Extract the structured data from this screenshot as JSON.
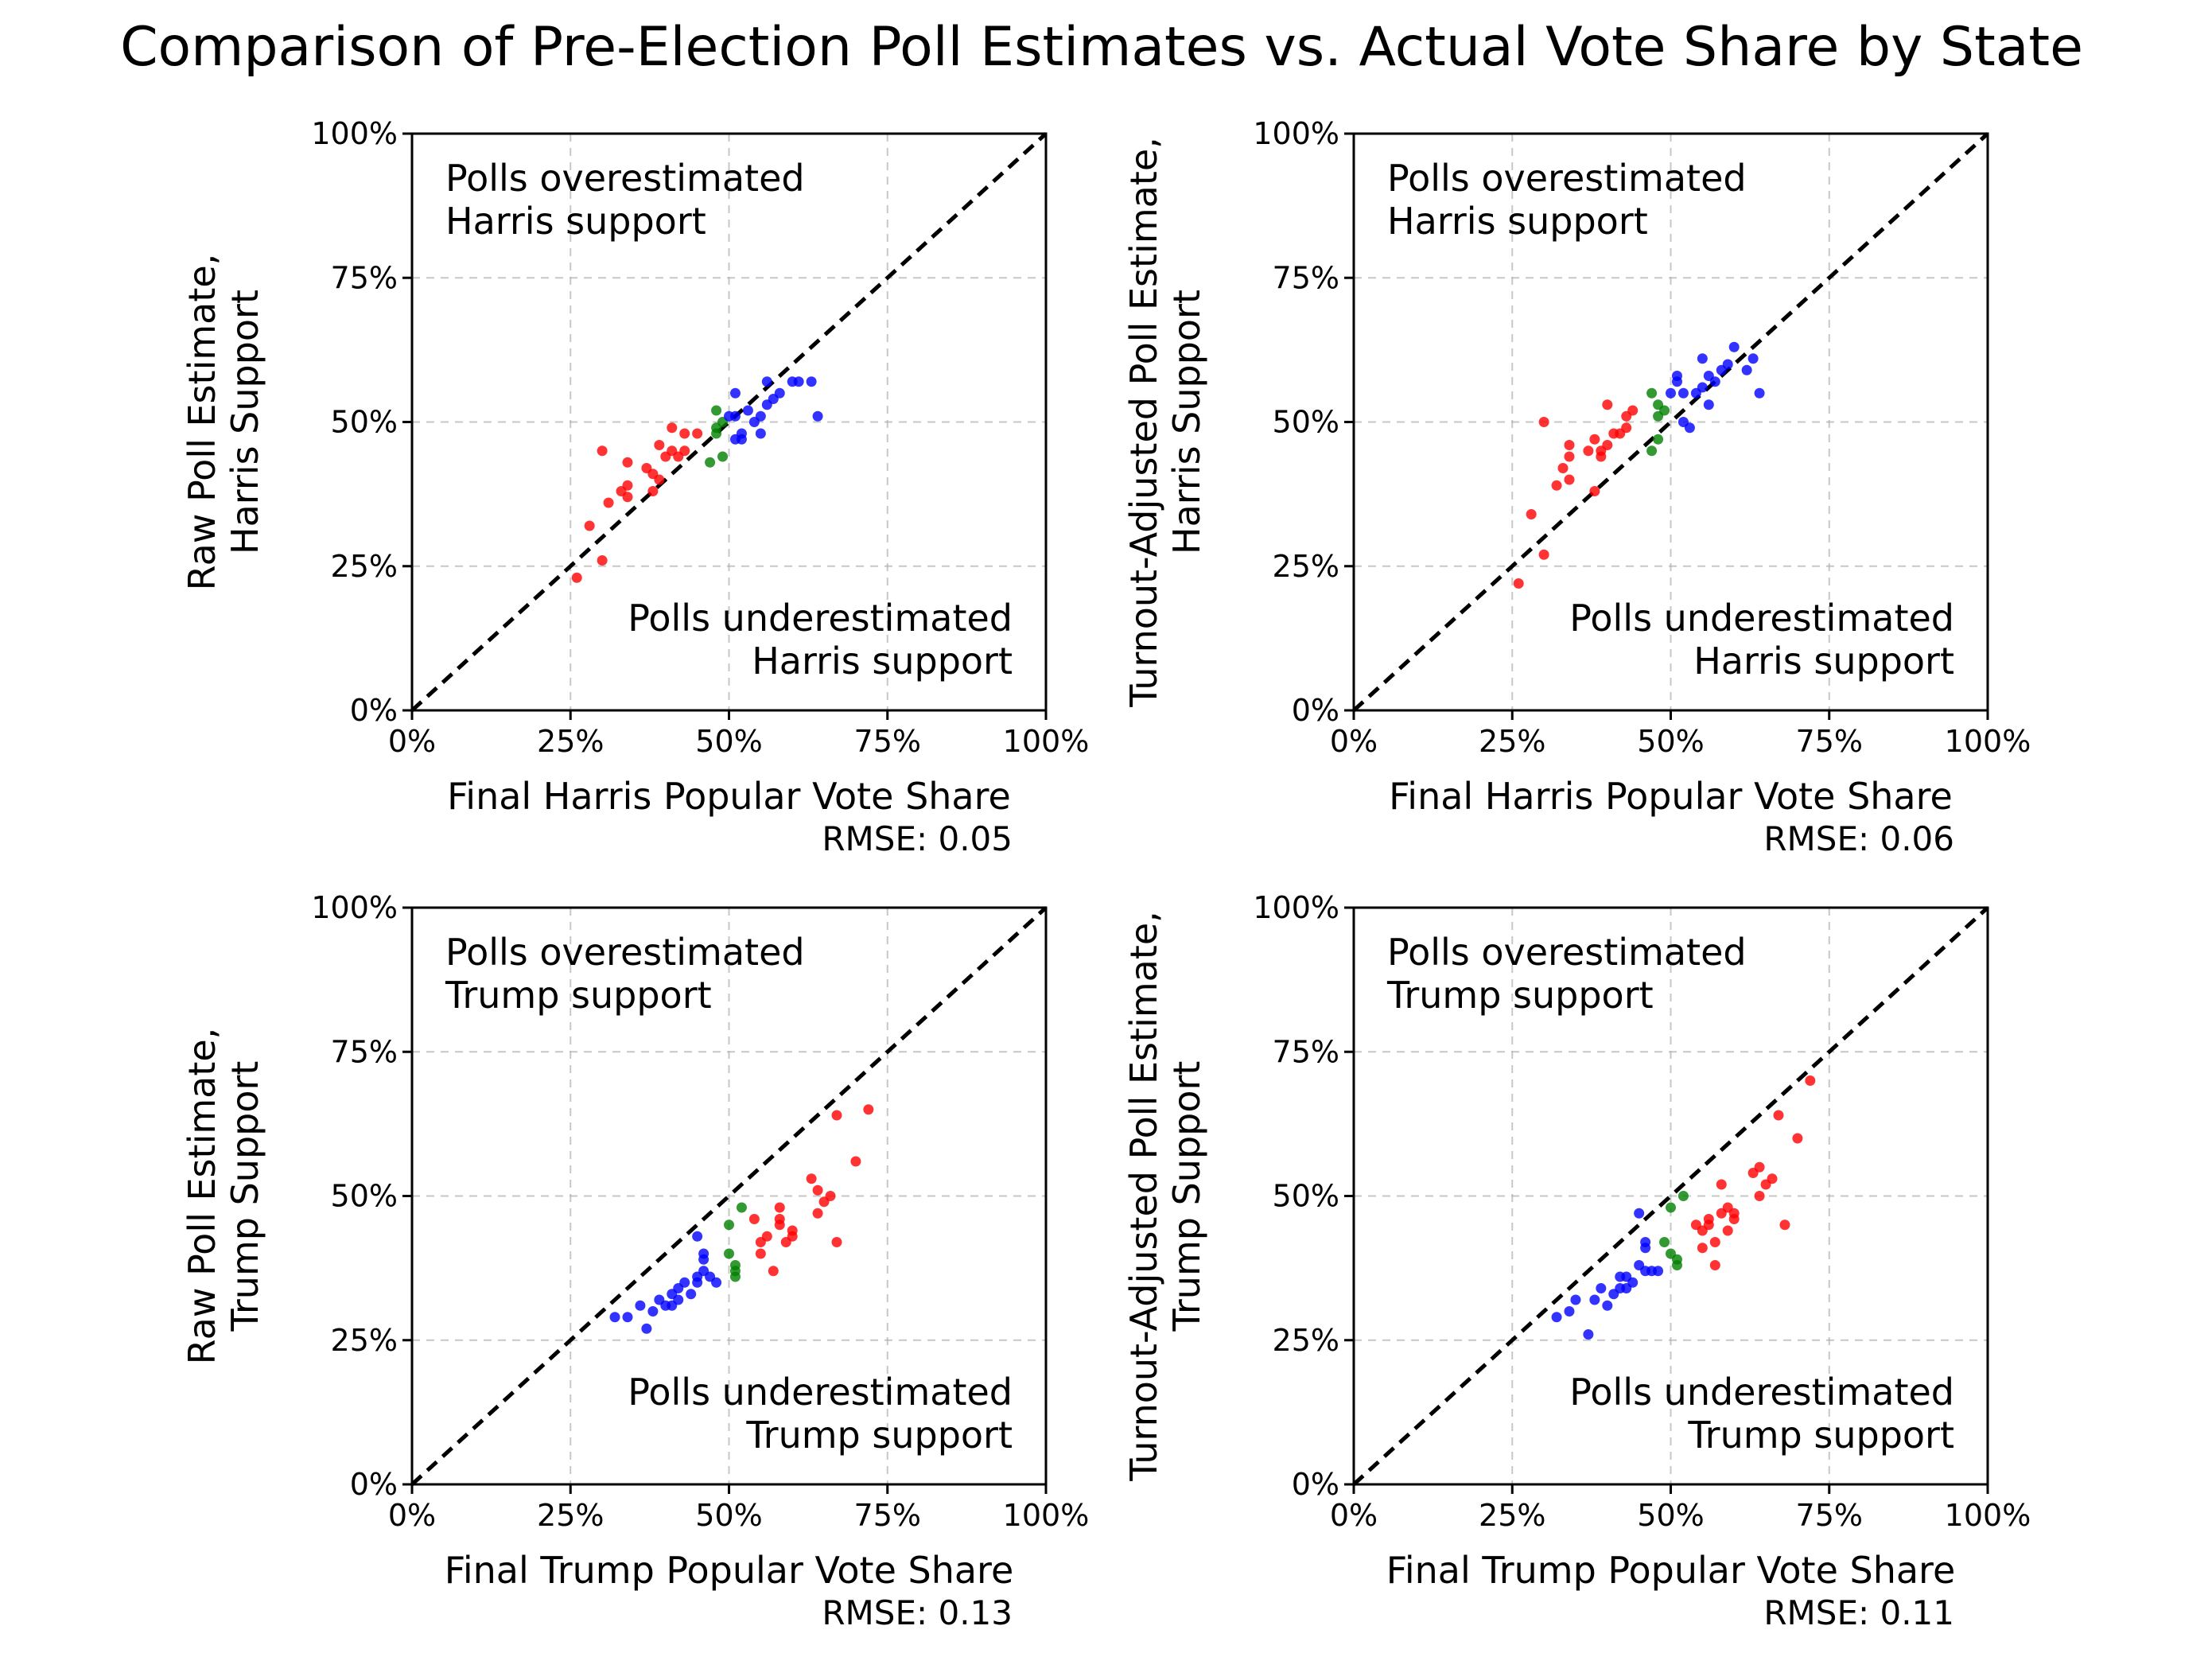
{
  "figure": {
    "title": "Comparison of Pre-Election Poll Estimates vs. Actual Vote Share by State"
  },
  "colors": {
    "democratic": "#0000ff",
    "republican": "#ff0000",
    "swing": "#008000"
  },
  "chart_data": [
    {
      "type": "scatter",
      "xlabel": "Final Harris Popular Vote Share",
      "ylabel_lines": [
        "Raw Poll Estimate,",
        "Harris Support"
      ],
      "xlim": [
        0,
        1
      ],
      "ylim": [
        0,
        1
      ],
      "ticks": [
        "0%",
        "25%",
        "50%",
        "75%",
        "100%"
      ],
      "tick_values": [
        0,
        0.25,
        0.5,
        0.75,
        1
      ],
      "grid": true,
      "reference_line": "y = x",
      "annotation_top": [
        "Polls overestimated",
        "Harris support"
      ],
      "annotation_bottom": [
        "Polls underestimated",
        "Harris support"
      ],
      "rmse_text": "RMSE: 0.05",
      "points": [
        {
          "x": 0.26,
          "y": 0.23,
          "g": "republican"
        },
        {
          "x": 0.28,
          "y": 0.32,
          "g": "republican"
        },
        {
          "x": 0.3,
          "y": 0.26,
          "g": "republican"
        },
        {
          "x": 0.31,
          "y": 0.36,
          "g": "republican"
        },
        {
          "x": 0.33,
          "y": 0.38,
          "g": "republican"
        },
        {
          "x": 0.34,
          "y": 0.37,
          "g": "republican"
        },
        {
          "x": 0.34,
          "y": 0.39,
          "g": "republican"
        },
        {
          "x": 0.3,
          "y": 0.45,
          "g": "republican"
        },
        {
          "x": 0.34,
          "y": 0.43,
          "g": "republican"
        },
        {
          "x": 0.37,
          "y": 0.42,
          "g": "republican"
        },
        {
          "x": 0.38,
          "y": 0.41,
          "g": "republican"
        },
        {
          "x": 0.38,
          "y": 0.38,
          "g": "republican"
        },
        {
          "x": 0.39,
          "y": 0.46,
          "g": "republican"
        },
        {
          "x": 0.4,
          "y": 0.44,
          "g": "republican"
        },
        {
          "x": 0.41,
          "y": 0.45,
          "g": "republican"
        },
        {
          "x": 0.41,
          "y": 0.49,
          "g": "republican"
        },
        {
          "x": 0.42,
          "y": 0.44,
          "g": "republican"
        },
        {
          "x": 0.43,
          "y": 0.45,
          "g": "republican"
        },
        {
          "x": 0.43,
          "y": 0.48,
          "g": "republican"
        },
        {
          "x": 0.45,
          "y": 0.48,
          "g": "republican"
        },
        {
          "x": 0.39,
          "y": 0.4,
          "g": "republican"
        },
        {
          "x": 0.47,
          "y": 0.43,
          "g": "swing"
        },
        {
          "x": 0.48,
          "y": 0.49,
          "g": "swing"
        },
        {
          "x": 0.48,
          "y": 0.52,
          "g": "swing"
        },
        {
          "x": 0.49,
          "y": 0.44,
          "g": "swing"
        },
        {
          "x": 0.49,
          "y": 0.5,
          "g": "swing"
        },
        {
          "x": 0.48,
          "y": 0.48,
          "g": "swing"
        },
        {
          "x": 0.51,
          "y": 0.47,
          "g": "democratic"
        },
        {
          "x": 0.51,
          "y": 0.51,
          "g": "democratic"
        },
        {
          "x": 0.52,
          "y": 0.48,
          "g": "democratic"
        },
        {
          "x": 0.51,
          "y": 0.55,
          "g": "democratic"
        },
        {
          "x": 0.53,
          "y": 0.52,
          "g": "democratic"
        },
        {
          "x": 0.54,
          "y": 0.5,
          "g": "democratic"
        },
        {
          "x": 0.55,
          "y": 0.51,
          "g": "democratic"
        },
        {
          "x": 0.55,
          "y": 0.48,
          "g": "democratic"
        },
        {
          "x": 0.56,
          "y": 0.53,
          "g": "democratic"
        },
        {
          "x": 0.56,
          "y": 0.57,
          "g": "democratic"
        },
        {
          "x": 0.57,
          "y": 0.54,
          "g": "democratic"
        },
        {
          "x": 0.58,
          "y": 0.55,
          "g": "democratic"
        },
        {
          "x": 0.6,
          "y": 0.57,
          "g": "democratic"
        },
        {
          "x": 0.61,
          "y": 0.57,
          "g": "democratic"
        },
        {
          "x": 0.63,
          "y": 0.57,
          "g": "democratic"
        },
        {
          "x": 0.64,
          "y": 0.51,
          "g": "democratic"
        },
        {
          "x": 0.52,
          "y": 0.47,
          "g": "democratic"
        },
        {
          "x": 0.5,
          "y": 0.51,
          "g": "democratic"
        }
      ]
    },
    {
      "type": "scatter",
      "xlabel": "Final Harris Popular Vote Share",
      "ylabel_lines": [
        "Turnout-Adjusted Poll Estimate,",
        "Harris Support"
      ],
      "xlim": [
        0,
        1
      ],
      "ylim": [
        0,
        1
      ],
      "ticks": [
        "0%",
        "25%",
        "50%",
        "75%",
        "100%"
      ],
      "tick_values": [
        0,
        0.25,
        0.5,
        0.75,
        1
      ],
      "grid": true,
      "reference_line": "y = x",
      "annotation_top": [
        "Polls overestimated",
        "Harris support"
      ],
      "annotation_bottom": [
        "Polls underestimated",
        "Harris support"
      ],
      "rmse_text": "RMSE: 0.06",
      "points": [
        {
          "x": 0.26,
          "y": 0.22,
          "g": "republican"
        },
        {
          "x": 0.28,
          "y": 0.34,
          "g": "republican"
        },
        {
          "x": 0.3,
          "y": 0.27,
          "g": "republican"
        },
        {
          "x": 0.3,
          "y": 0.5,
          "g": "republican"
        },
        {
          "x": 0.32,
          "y": 0.39,
          "g": "republican"
        },
        {
          "x": 0.33,
          "y": 0.42,
          "g": "republican"
        },
        {
          "x": 0.34,
          "y": 0.4,
          "g": "republican"
        },
        {
          "x": 0.34,
          "y": 0.44,
          "g": "republican"
        },
        {
          "x": 0.34,
          "y": 0.46,
          "g": "republican"
        },
        {
          "x": 0.37,
          "y": 0.45,
          "g": "republican"
        },
        {
          "x": 0.38,
          "y": 0.47,
          "g": "republican"
        },
        {
          "x": 0.38,
          "y": 0.38,
          "g": "republican"
        },
        {
          "x": 0.39,
          "y": 0.44,
          "g": "republican"
        },
        {
          "x": 0.4,
          "y": 0.46,
          "g": "republican"
        },
        {
          "x": 0.41,
          "y": 0.48,
          "g": "republican"
        },
        {
          "x": 0.4,
          "y": 0.53,
          "g": "republican"
        },
        {
          "x": 0.42,
          "y": 0.48,
          "g": "republican"
        },
        {
          "x": 0.43,
          "y": 0.51,
          "g": "republican"
        },
        {
          "x": 0.43,
          "y": 0.49,
          "g": "republican"
        },
        {
          "x": 0.44,
          "y": 0.52,
          "g": "republican"
        },
        {
          "x": 0.39,
          "y": 0.45,
          "g": "republican"
        },
        {
          "x": 0.47,
          "y": 0.45,
          "g": "swing"
        },
        {
          "x": 0.47,
          "y": 0.55,
          "g": "swing"
        },
        {
          "x": 0.48,
          "y": 0.51,
          "g": "swing"
        },
        {
          "x": 0.48,
          "y": 0.47,
          "g": "swing"
        },
        {
          "x": 0.49,
          "y": 0.52,
          "g": "swing"
        },
        {
          "x": 0.48,
          "y": 0.53,
          "g": "swing"
        },
        {
          "x": 0.5,
          "y": 0.55,
          "g": "democratic"
        },
        {
          "x": 0.51,
          "y": 0.58,
          "g": "democratic"
        },
        {
          "x": 0.52,
          "y": 0.5,
          "g": "democratic"
        },
        {
          "x": 0.52,
          "y": 0.55,
          "g": "democratic"
        },
        {
          "x": 0.53,
          "y": 0.49,
          "g": "democratic"
        },
        {
          "x": 0.54,
          "y": 0.55,
          "g": "democratic"
        },
        {
          "x": 0.55,
          "y": 0.56,
          "g": "democratic"
        },
        {
          "x": 0.56,
          "y": 0.53,
          "g": "democratic"
        },
        {
          "x": 0.56,
          "y": 0.58,
          "g": "democratic"
        },
        {
          "x": 0.55,
          "y": 0.61,
          "g": "democratic"
        },
        {
          "x": 0.57,
          "y": 0.57,
          "g": "democratic"
        },
        {
          "x": 0.58,
          "y": 0.59,
          "g": "democratic"
        },
        {
          "x": 0.59,
          "y": 0.6,
          "g": "democratic"
        },
        {
          "x": 0.6,
          "y": 0.63,
          "g": "democratic"
        },
        {
          "x": 0.62,
          "y": 0.59,
          "g": "democratic"
        },
        {
          "x": 0.63,
          "y": 0.61,
          "g": "democratic"
        },
        {
          "x": 0.64,
          "y": 0.55,
          "g": "democratic"
        },
        {
          "x": 0.51,
          "y": 0.57,
          "g": "democratic"
        }
      ]
    },
    {
      "type": "scatter",
      "xlabel": "Final Trump Popular Vote Share",
      "ylabel_lines": [
        "Raw Poll Estimate,",
        "Trump Support"
      ],
      "xlim": [
        0,
        1
      ],
      "ylim": [
        0,
        1
      ],
      "ticks": [
        "0%",
        "25%",
        "50%",
        "75%",
        "100%"
      ],
      "tick_values": [
        0,
        0.25,
        0.5,
        0.75,
        1
      ],
      "grid": true,
      "reference_line": "y = x",
      "annotation_top": [
        "Polls overestimated",
        "Trump support"
      ],
      "annotation_bottom": [
        "Polls underestimated",
        "Trump support"
      ],
      "rmse_text": "RMSE: 0.13",
      "points": [
        {
          "x": 0.32,
          "y": 0.29,
          "g": "democratic"
        },
        {
          "x": 0.34,
          "y": 0.29,
          "g": "democratic"
        },
        {
          "x": 0.36,
          "y": 0.31,
          "g": "democratic"
        },
        {
          "x": 0.37,
          "y": 0.27,
          "g": "democratic"
        },
        {
          "x": 0.38,
          "y": 0.3,
          "g": "democratic"
        },
        {
          "x": 0.39,
          "y": 0.32,
          "g": "democratic"
        },
        {
          "x": 0.4,
          "y": 0.31,
          "g": "democratic"
        },
        {
          "x": 0.41,
          "y": 0.33,
          "g": "democratic"
        },
        {
          "x": 0.41,
          "y": 0.31,
          "g": "democratic"
        },
        {
          "x": 0.42,
          "y": 0.32,
          "g": "democratic"
        },
        {
          "x": 0.42,
          "y": 0.34,
          "g": "democratic"
        },
        {
          "x": 0.43,
          "y": 0.35,
          "g": "democratic"
        },
        {
          "x": 0.44,
          "y": 0.33,
          "g": "democratic"
        },
        {
          "x": 0.45,
          "y": 0.35,
          "g": "democratic"
        },
        {
          "x": 0.45,
          "y": 0.43,
          "g": "democratic"
        },
        {
          "x": 0.46,
          "y": 0.39,
          "g": "democratic"
        },
        {
          "x": 0.46,
          "y": 0.4,
          "g": "democratic"
        },
        {
          "x": 0.46,
          "y": 0.37,
          "g": "democratic"
        },
        {
          "x": 0.47,
          "y": 0.36,
          "g": "democratic"
        },
        {
          "x": 0.48,
          "y": 0.35,
          "g": "democratic"
        },
        {
          "x": 0.45,
          "y": 0.36,
          "g": "democratic"
        },
        {
          "x": 0.5,
          "y": 0.4,
          "g": "swing"
        },
        {
          "x": 0.5,
          "y": 0.45,
          "g": "swing"
        },
        {
          "x": 0.51,
          "y": 0.38,
          "g": "swing"
        },
        {
          "x": 0.51,
          "y": 0.36,
          "g": "swing"
        },
        {
          "x": 0.52,
          "y": 0.48,
          "g": "swing"
        },
        {
          "x": 0.51,
          "y": 0.37,
          "g": "swing"
        },
        {
          "x": 0.54,
          "y": 0.46,
          "g": "republican"
        },
        {
          "x": 0.55,
          "y": 0.4,
          "g": "republican"
        },
        {
          "x": 0.55,
          "y": 0.42,
          "g": "republican"
        },
        {
          "x": 0.56,
          "y": 0.43,
          "g": "republican"
        },
        {
          "x": 0.57,
          "y": 0.37,
          "g": "republican"
        },
        {
          "x": 0.58,
          "y": 0.45,
          "g": "republican"
        },
        {
          "x": 0.58,
          "y": 0.48,
          "g": "republican"
        },
        {
          "x": 0.58,
          "y": 0.46,
          "g": "republican"
        },
        {
          "x": 0.59,
          "y": 0.42,
          "g": "republican"
        },
        {
          "x": 0.6,
          "y": 0.43,
          "g": "republican"
        },
        {
          "x": 0.6,
          "y": 0.44,
          "g": "republican"
        },
        {
          "x": 0.63,
          "y": 0.53,
          "g": "republican"
        },
        {
          "x": 0.64,
          "y": 0.47,
          "g": "republican"
        },
        {
          "x": 0.64,
          "y": 0.51,
          "g": "republican"
        },
        {
          "x": 0.65,
          "y": 0.49,
          "g": "republican"
        },
        {
          "x": 0.66,
          "y": 0.5,
          "g": "republican"
        },
        {
          "x": 0.67,
          "y": 0.64,
          "g": "republican"
        },
        {
          "x": 0.67,
          "y": 0.42,
          "g": "republican"
        },
        {
          "x": 0.7,
          "y": 0.56,
          "g": "republican"
        },
        {
          "x": 0.72,
          "y": 0.65,
          "g": "republican"
        }
      ]
    },
    {
      "type": "scatter",
      "xlabel": "Final Trump Popular Vote Share",
      "ylabel_lines": [
        "Turnout-Adjusted Poll Estimate,",
        "Trump Support"
      ],
      "xlim": [
        0,
        1
      ],
      "ylim": [
        0,
        1
      ],
      "ticks": [
        "0%",
        "25%",
        "50%",
        "75%",
        "100%"
      ],
      "tick_values": [
        0,
        0.25,
        0.5,
        0.75,
        1
      ],
      "grid": true,
      "reference_line": "y = x",
      "annotation_top": [
        "Polls overestimated",
        "Trump support"
      ],
      "annotation_bottom": [
        "Polls underestimated",
        "Trump support"
      ],
      "rmse_text": "RMSE: 0.11",
      "points": [
        {
          "x": 0.32,
          "y": 0.29,
          "g": "democratic"
        },
        {
          "x": 0.34,
          "y": 0.3,
          "g": "democratic"
        },
        {
          "x": 0.35,
          "y": 0.32,
          "g": "democratic"
        },
        {
          "x": 0.37,
          "y": 0.26,
          "g": "democratic"
        },
        {
          "x": 0.38,
          "y": 0.32,
          "g": "democratic"
        },
        {
          "x": 0.39,
          "y": 0.34,
          "g": "democratic"
        },
        {
          "x": 0.4,
          "y": 0.31,
          "g": "democratic"
        },
        {
          "x": 0.41,
          "y": 0.33,
          "g": "democratic"
        },
        {
          "x": 0.42,
          "y": 0.34,
          "g": "democratic"
        },
        {
          "x": 0.42,
          "y": 0.36,
          "g": "democratic"
        },
        {
          "x": 0.43,
          "y": 0.34,
          "g": "democratic"
        },
        {
          "x": 0.43,
          "y": 0.36,
          "g": "democratic"
        },
        {
          "x": 0.44,
          "y": 0.35,
          "g": "democratic"
        },
        {
          "x": 0.45,
          "y": 0.47,
          "g": "democratic"
        },
        {
          "x": 0.46,
          "y": 0.42,
          "g": "democratic"
        },
        {
          "x": 0.46,
          "y": 0.41,
          "g": "democratic"
        },
        {
          "x": 0.46,
          "y": 0.37,
          "g": "democratic"
        },
        {
          "x": 0.47,
          "y": 0.37,
          "g": "democratic"
        },
        {
          "x": 0.48,
          "y": 0.37,
          "g": "democratic"
        },
        {
          "x": 0.45,
          "y": 0.38,
          "g": "democratic"
        },
        {
          "x": 0.49,
          "y": 0.42,
          "g": "swing"
        },
        {
          "x": 0.5,
          "y": 0.48,
          "g": "swing"
        },
        {
          "x": 0.5,
          "y": 0.4,
          "g": "swing"
        },
        {
          "x": 0.51,
          "y": 0.38,
          "g": "swing"
        },
        {
          "x": 0.52,
          "y": 0.5,
          "g": "swing"
        },
        {
          "x": 0.51,
          "y": 0.39,
          "g": "swing"
        },
        {
          "x": 0.54,
          "y": 0.45,
          "g": "republican"
        },
        {
          "x": 0.55,
          "y": 0.44,
          "g": "republican"
        },
        {
          "x": 0.55,
          "y": 0.41,
          "g": "republican"
        },
        {
          "x": 0.56,
          "y": 0.46,
          "g": "republican"
        },
        {
          "x": 0.56,
          "y": 0.45,
          "g": "republican"
        },
        {
          "x": 0.57,
          "y": 0.38,
          "g": "republican"
        },
        {
          "x": 0.57,
          "y": 0.42,
          "g": "republican"
        },
        {
          "x": 0.58,
          "y": 0.47,
          "g": "republican"
        },
        {
          "x": 0.58,
          "y": 0.52,
          "g": "republican"
        },
        {
          "x": 0.59,
          "y": 0.44,
          "g": "republican"
        },
        {
          "x": 0.59,
          "y": 0.48,
          "g": "republican"
        },
        {
          "x": 0.6,
          "y": 0.47,
          "g": "republican"
        },
        {
          "x": 0.6,
          "y": 0.46,
          "g": "republican"
        },
        {
          "x": 0.63,
          "y": 0.54,
          "g": "republican"
        },
        {
          "x": 0.64,
          "y": 0.5,
          "g": "republican"
        },
        {
          "x": 0.64,
          "y": 0.55,
          "g": "republican"
        },
        {
          "x": 0.65,
          "y": 0.52,
          "g": "republican"
        },
        {
          "x": 0.66,
          "y": 0.53,
          "g": "republican"
        },
        {
          "x": 0.67,
          "y": 0.64,
          "g": "republican"
        },
        {
          "x": 0.68,
          "y": 0.45,
          "g": "republican"
        },
        {
          "x": 0.7,
          "y": 0.6,
          "g": "republican"
        },
        {
          "x": 0.72,
          "y": 0.7,
          "g": "republican"
        }
      ]
    }
  ]
}
